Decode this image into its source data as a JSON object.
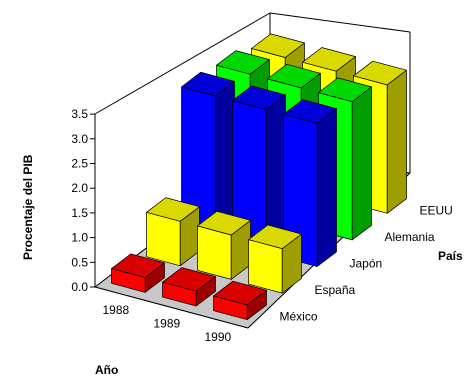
{
  "chart_data": {
    "type": "bar3d",
    "ylabel": "Procentaje del PIB",
    "xlabel": "Año",
    "zlabel": "País",
    "ylim": [
      0,
      3.5
    ],
    "yticks": [
      "0.0",
      "0.5",
      "1.0",
      "1.5",
      "2.0",
      "2.5",
      "3.0",
      "3.5"
    ],
    "categories": [
      "1988",
      "1989",
      "1990"
    ],
    "grid": false,
    "series": [
      {
        "name": "México",
        "color": "#ff0000",
        "values": [
          0.3,
          0.3,
          0.3
        ]
      },
      {
        "name": "España",
        "color": "#ffff00",
        "values": [
          0.9,
          0.9,
          0.9
        ]
      },
      {
        "name": "Japón",
        "color": "#0000ff",
        "values": [
          2.9,
          2.9,
          2.9
        ]
      },
      {
        "name": "Alemania",
        "color": "#00ff00",
        "values": [
          2.8,
          2.8,
          2.8
        ]
      },
      {
        "name": "EEUU",
        "color": "#ffff00",
        "values": [
          2.6,
          2.6,
          2.6
        ]
      }
    ]
  }
}
